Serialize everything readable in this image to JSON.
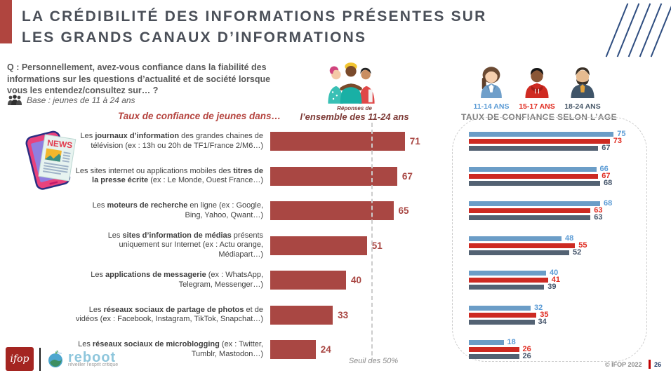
{
  "slide": {
    "title_lines": [
      "LA CRÉDIBILITÉ DES INFORMATIONS PRÉSENTES SUR",
      "LES GRANDS CANAUX D’INFORMATIONS"
    ],
    "question": "Q : Personnellement, avez-vous confiance dans la fiabilité des informations sur les questions d’actualité et de société lorsque vous les entendez/consultez sur… ?",
    "base": "Base : jeunes de 11 à 24 ans",
    "left_heading": "Taux de confiance de jeunes dans…",
    "center_caption_small": "Réponses de",
    "center_caption": "l’ensemble des 11-24 ans",
    "right_heading": "TAUX DE CONFIANCE SELON L’AGE",
    "threshold_label": "Seuil des 50%",
    "copyright": "© IFOP 2022",
    "page_number": "26"
  },
  "age_groups": [
    {
      "label": "11-14 ANS",
      "bar_color": "#6b9dc7",
      "label_color": "#5b9bd5"
    },
    {
      "label": "15-17 ANS",
      "bar_color": "#cd2a22",
      "label_color": "#e02b20"
    },
    {
      "label": "18-24 ANS",
      "bar_color": "#536273",
      "label_color": "#44546a"
    }
  ],
  "row_label_segments": [
    [
      {
        "t": "Les ",
        "b": false
      },
      {
        "t": "journaux d’information",
        "b": true
      },
      {
        "t": " des grandes chaines de télévision (ex : 13h ou 20h de TF1/France 2/M6…)",
        "b": false
      }
    ],
    [
      {
        "t": "Les sites internet ou applications mobiles des ",
        "b": false
      },
      {
        "t": "titres de la presse écrite",
        "b": true
      },
      {
        "t": " (ex : Le Monde, Ouest France…)",
        "b": false
      }
    ],
    [
      {
        "t": "Les ",
        "b": false
      },
      {
        "t": "moteurs de recherche",
        "b": true
      },
      {
        "t": " en ligne (ex : Google, Bing, Yahoo, Qwant…)",
        "b": false
      }
    ],
    [
      {
        "t": "Les ",
        "b": false
      },
      {
        "t": "sites d’information de médias",
        "b": true
      },
      {
        "t": " présents uniquement sur Internet (ex : Actu orange, Médiapart…)",
        "b": false
      }
    ],
    [
      {
        "t": "Les ",
        "b": false
      },
      {
        "t": "applications de messagerie",
        "b": true
      },
      {
        "t": " (ex : WhatsApp, Telegram, Messenger…)",
        "b": false
      }
    ],
    [
      {
        "t": "Les ",
        "b": false
      },
      {
        "t": "réseaux sociaux de partage de photos",
        "b": true
      },
      {
        "t": " et de vidéos (ex : Facebook, Instagram, TikTok, Snapchat…)",
        "b": false
      }
    ],
    [
      {
        "t": "Les ",
        "b": false
      },
      {
        "t": "réseaux sociaux de microblogging",
        "b": true
      },
      {
        "t": " (ex : Twitter, Tumblr, Mastodon…)",
        "b": false
      }
    ]
  ],
  "chart_data": [
    {
      "type": "bar",
      "orientation": "horizontal",
      "title": "Taux de confiance de jeunes dans…",
      "subtitle": "Réponses de l’ensemble des 11-24 ans",
      "unit": "%",
      "xlim": [
        0,
        80
      ],
      "bar_color": "#a94743",
      "grid": false,
      "threshold": {
        "value": 50,
        "label": "Seuil des 50%"
      },
      "categories": [
        "Les journaux d’information des grandes chaines de télévision (ex : 13h ou 20h de TF1/France 2/M6…)",
        "Les sites internet ou applications mobiles des titres de la presse écrite (ex : Le Monde, Ouest France…)",
        "Les moteurs de recherche en ligne (ex : Google, Bing, Yahoo, Qwant…)",
        "Les sites d’information de médias présents uniquement sur Internet (ex : Actu orange, Médiapart…)",
        "Les applications de messagerie (ex : WhatsApp, Telegram, Messenger…)",
        "Les réseaux sociaux de partage de photos et de vidéos (ex : Facebook, Instagram, TikTok, Snapchat…)",
        "Les réseaux sociaux de microblogging (ex : Twitter, Tumblr, Mastodon…)"
      ],
      "values": [
        71,
        67,
        65,
        51,
        40,
        33,
        24
      ]
    },
    {
      "type": "bar",
      "orientation": "horizontal",
      "title": "TAUX DE CONFIANCE SELON L’AGE",
      "unit": "%",
      "xlim": [
        0,
        80
      ],
      "grid": false,
      "legend_position": "top",
      "categories": [
        "Les journaux d’information des grandes chaines de télévision (ex : 13h ou 20h de TF1/France 2/M6…)",
        "Les sites internet ou applications mobiles des titres de la presse écrite (ex : Le Monde, Ouest France…)",
        "Les moteurs de recherche en ligne (ex : Google, Bing, Yahoo, Qwant…)",
        "Les sites d’information de médias présents uniquement sur Internet (ex : Actu orange, Médiapart…)",
        "Les applications de messagerie (ex : WhatsApp, Telegram, Messenger…)",
        "Les réseaux sociaux de partage de photos et de vidéos (ex : Facebook, Instagram, TikTok, Snapchat…)",
        "Les réseaux sociaux de microblogging (ex : Twitter, Tumblr, Mastodon…)"
      ],
      "series": [
        {
          "name": "11-14 ANS",
          "color": "#6b9dc7",
          "values": [
            75,
            66,
            68,
            48,
            40,
            32,
            18
          ]
        },
        {
          "name": "15-17 ANS",
          "color": "#cd2a22",
          "values": [
            73,
            67,
            63,
            55,
            41,
            35,
            26
          ]
        },
        {
          "name": "18-24 ANS",
          "color": "#536273",
          "values": [
            67,
            68,
            63,
            52,
            39,
            34,
            26
          ]
        }
      ]
    }
  ],
  "logos": {
    "ifop": "ifop",
    "reboot": "reboot",
    "reboot_tagline": "réveiller l’esprit critique"
  },
  "icons": {
    "base_icon": "group-of-people",
    "left_icon": "news-phone",
    "center_icon": "three-friends-hugging",
    "decoration": "diagonal-lines"
  },
  "colors": {
    "accent_red": "#b0453f",
    "title_gray": "#4a4f58",
    "main_bar": "#a94743",
    "maroon_caption": "#7d3a36",
    "threshold_gray": "#cccccc"
  }
}
